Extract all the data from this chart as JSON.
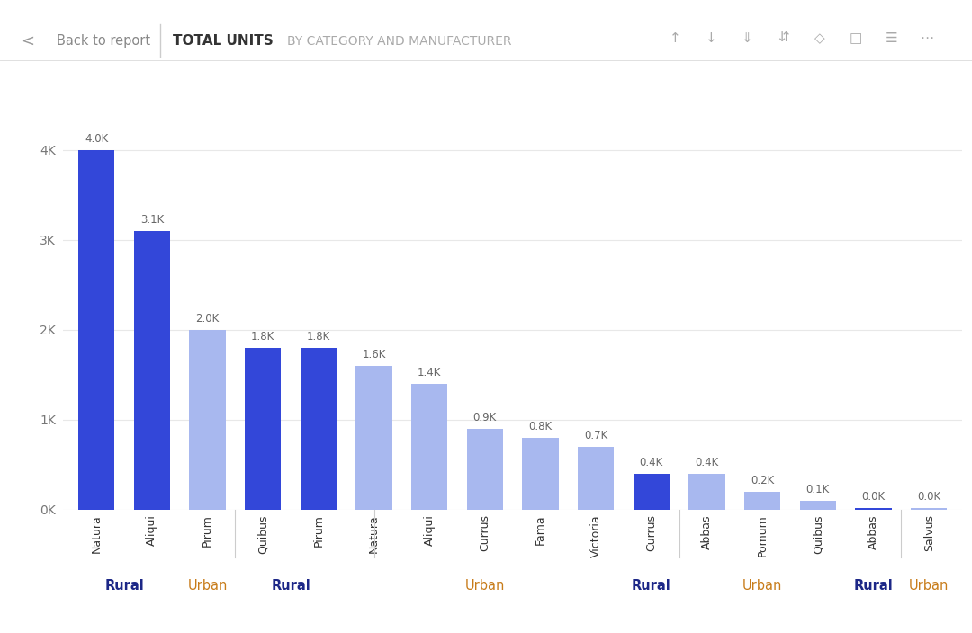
{
  "bars": [
    {
      "label": "Natura",
      "value": 4000,
      "color": "#3347d9",
      "category": "Rural"
    },
    {
      "label": "Aliqui",
      "value": 3100,
      "color": "#3347d9",
      "category": "Rural"
    },
    {
      "label": "Pirum",
      "value": 2000,
      "color": "#a8b8ef",
      "category": "Urban"
    },
    {
      "label": "Quibus",
      "value": 1800,
      "color": "#3347d9",
      "category": "Rural"
    },
    {
      "label": "Pirum",
      "value": 1800,
      "color": "#3347d9",
      "category": "Rural"
    },
    {
      "label": "Natura",
      "value": 1600,
      "color": "#a8b8ef",
      "category": "Urban"
    },
    {
      "label": "Aliqui",
      "value": 1400,
      "color": "#a8b8ef",
      "category": "Urban"
    },
    {
      "label": "Currus",
      "value": 900,
      "color": "#a8b8ef",
      "category": "Urban"
    },
    {
      "label": "Fama",
      "value": 800,
      "color": "#a8b8ef",
      "category": "Urban"
    },
    {
      "label": "Victoria",
      "value": 700,
      "color": "#a8b8ef",
      "category": "Urban"
    },
    {
      "label": "Currus",
      "value": 400,
      "color": "#3347d9",
      "category": "Rural"
    },
    {
      "label": "Abbas",
      "value": 400,
      "color": "#a8b8ef",
      "category": "Urban"
    },
    {
      "label": "Pomum",
      "value": 200,
      "color": "#a8b8ef",
      "category": "Urban"
    },
    {
      "label": "Quibus",
      "value": 100,
      "color": "#a8b8ef",
      "category": "Urban"
    },
    {
      "label": "Abbas",
      "value": 18,
      "color": "#3347d9",
      "category": "Rural"
    },
    {
      "label": "Salvus",
      "value": 18,
      "color": "#a8b8ef",
      "category": "Urban"
    }
  ],
  "groups": [
    {
      "label": "Rural",
      "start": 0,
      "end": 1,
      "color": "#1c2787",
      "bold": true
    },
    {
      "label": "Urban",
      "start": 2,
      "end": 2,
      "color": "#c87c1a",
      "bold": false
    },
    {
      "label": "Rural",
      "start": 3,
      "end": 4,
      "color": "#1c2787",
      "bold": true
    },
    {
      "label": "Urban",
      "start": 5,
      "end": 9,
      "color": "#c87c1a",
      "bold": false
    },
    {
      "label": "Rural",
      "start": 10,
      "end": 10,
      "color": "#1c2787",
      "bold": true
    },
    {
      "label": "Urban",
      "start": 11,
      "end": 13,
      "color": "#c87c1a",
      "bold": false
    },
    {
      "label": "Rural",
      "start": 14,
      "end": 14,
      "color": "#1c2787",
      "bold": true
    },
    {
      "label": "Urban",
      "start": 15,
      "end": 15,
      "color": "#c87c1a",
      "bold": false
    }
  ],
  "value_labels": [
    "4.0K",
    "3.1K",
    "2.0K",
    "1.8K",
    "1.8K",
    "1.6K",
    "1.4K",
    "0.9K",
    "0.8K",
    "0.7K",
    "0.4K",
    "0.4K",
    "0.2K",
    "0.1K",
    "0.0K",
    "0.0K"
  ],
  "yticks": [
    0,
    1000,
    2000,
    3000,
    4000
  ],
  "ytick_labels": [
    "0K",
    "1K",
    "2K",
    "3K",
    "4K"
  ],
  "ylim": [
    0,
    4400
  ],
  "bg_color": "#ffffff",
  "header_title1": "TOTAL UNITS",
  "header_title2": "BY CATEGORY AND MANUFACTURER",
  "back_text": "Back to report",
  "val_label_color": "#666666",
  "xtick_color": "#333333",
  "ytick_color": "#777777",
  "grid_color": "#e8e8e8"
}
